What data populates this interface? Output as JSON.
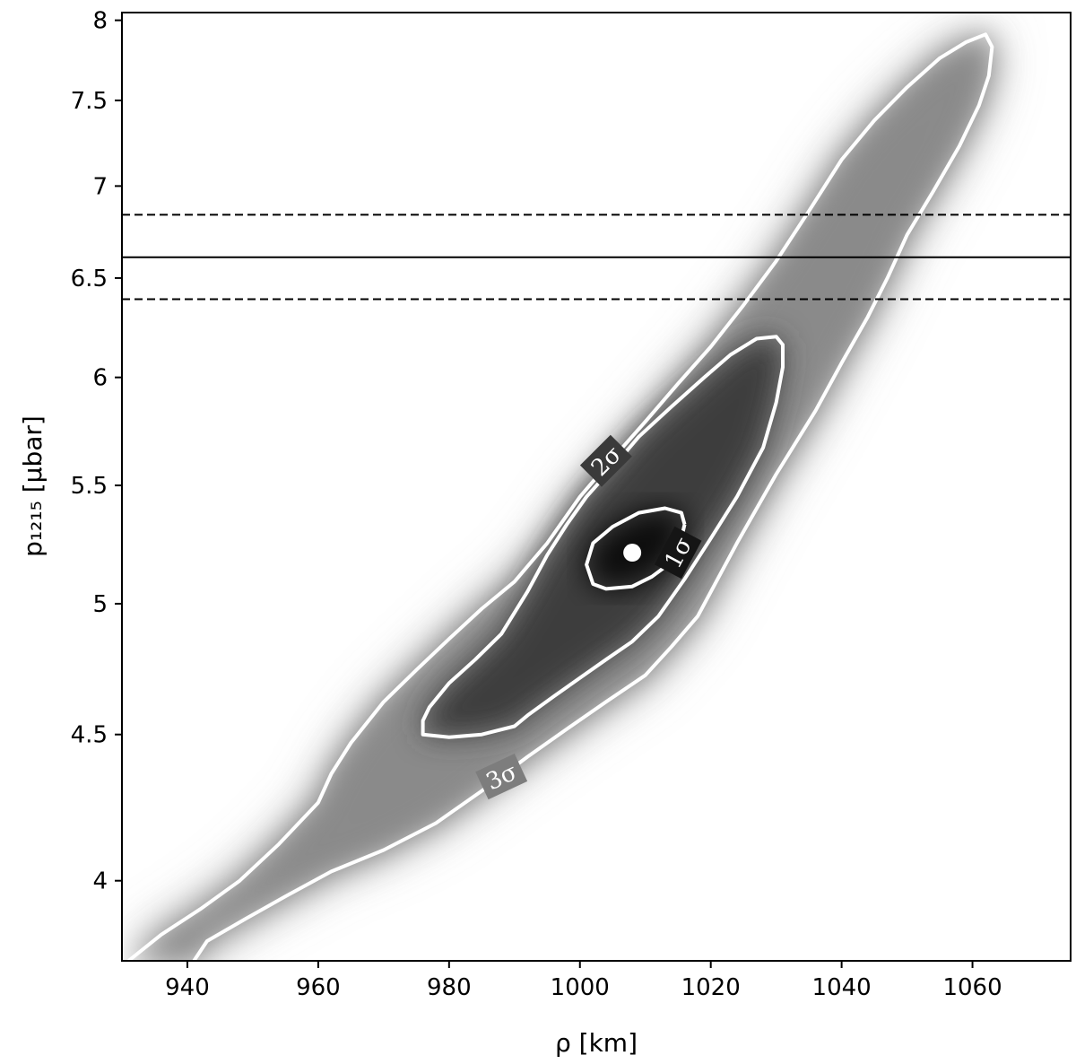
{
  "chart_data": {
    "type": "heatmap",
    "title": "",
    "xlabel": "ρ [km]",
    "ylabel": "p₁₂₁₅ [μbar]",
    "xlim": [
      930,
      1075
    ],
    "ylim": [
      3.75,
      8.05
    ],
    "y_scale": "log",
    "x_ticks": [
      940,
      960,
      980,
      1000,
      1020,
      1040,
      1060
    ],
    "y_ticks": [
      4,
      4.5,
      5,
      5.5,
      6,
      6.5,
      7,
      7.5,
      8
    ],
    "x_tick_labels": [
      "940",
      "960",
      "980",
      "1000",
      "1020",
      "1040",
      "1060"
    ],
    "y_tick_labels": [
      "4",
      "4.5",
      "5",
      "5.5",
      "6",
      "6.5",
      "7",
      "7.5",
      "8"
    ],
    "grid": false,
    "colormap": "grayscale",
    "best_fit": {
      "x": 1008,
      "y": 5.21
    },
    "reference_line": {
      "value": 6.61,
      "lower": 6.39,
      "upper": 6.84
    },
    "contours": [
      {
        "label": "1σ",
        "points": [
          [
            1016,
            5.33
          ],
          [
            1015.5,
            5.38
          ],
          [
            1013,
            5.4
          ],
          [
            1009,
            5.38
          ],
          [
            1005,
            5.32
          ],
          [
            1002,
            5.25
          ],
          [
            1001,
            5.16
          ],
          [
            1002,
            5.08
          ],
          [
            1004,
            5.06
          ],
          [
            1008,
            5.07
          ],
          [
            1011,
            5.11
          ],
          [
            1013,
            5.15
          ],
          [
            1014.5,
            5.2
          ],
          [
            1015.5,
            5.27
          ],
          [
            1016,
            5.33
          ]
        ]
      },
      {
        "label": "2σ",
        "points": [
          [
            1031,
            6.16
          ],
          [
            1030,
            6.2
          ],
          [
            1027,
            6.19
          ],
          [
            1023,
            6.11
          ],
          [
            1019,
            6.0
          ],
          [
            1014,
            5.86
          ],
          [
            1009,
            5.72
          ],
          [
            1005,
            5.58
          ],
          [
            1001,
            5.45
          ],
          [
            998,
            5.33
          ],
          [
            995,
            5.2
          ],
          [
            992,
            5.05
          ],
          [
            988,
            4.88
          ],
          [
            984,
            4.78
          ],
          [
            980,
            4.69
          ],
          [
            977,
            4.6
          ],
          [
            976,
            4.55
          ],
          [
            976,
            4.5
          ],
          [
            980,
            4.49
          ],
          [
            985,
            4.5
          ],
          [
            990,
            4.53
          ],
          [
            992,
            4.57
          ],
          [
            996,
            4.64
          ],
          [
            1000,
            4.71
          ],
          [
            1004,
            4.78
          ],
          [
            1008,
            4.85
          ],
          [
            1012,
            4.95
          ],
          [
            1016,
            5.1
          ],
          [
            1020,
            5.27
          ],
          [
            1024,
            5.45
          ],
          [
            1028,
            5.67
          ],
          [
            1030,
            5.88
          ],
          [
            1031,
            6.05
          ],
          [
            1031,
            6.16
          ]
        ]
      },
      {
        "label": "3σ",
        "points": [
          [
            931,
            3.75
          ],
          [
            936,
            3.83
          ],
          [
            942,
            3.91
          ],
          [
            948,
            4.0
          ],
          [
            954,
            4.12
          ],
          [
            960,
            4.26
          ],
          [
            962,
            4.36
          ],
          [
            965,
            4.47
          ],
          [
            970,
            4.62
          ],
          [
            975,
            4.74
          ],
          [
            980,
            4.86
          ],
          [
            985,
            4.98
          ],
          [
            990,
            5.09
          ],
          [
            995,
            5.25
          ],
          [
            1000,
            5.45
          ],
          [
            1005,
            5.62
          ],
          [
            1010,
            5.79
          ],
          [
            1015,
            5.97
          ],
          [
            1020,
            6.15
          ],
          [
            1025,
            6.36
          ],
          [
            1030,
            6.59
          ],
          [
            1035,
            6.86
          ],
          [
            1040,
            7.15
          ],
          [
            1045,
            7.38
          ],
          [
            1050,
            7.58
          ],
          [
            1055,
            7.76
          ],
          [
            1059,
            7.86
          ],
          [
            1062,
            7.91
          ],
          [
            1063,
            7.83
          ],
          [
            1062.5,
            7.65
          ],
          [
            1061,
            7.47
          ],
          [
            1058,
            7.23
          ],
          [
            1054,
            6.97
          ],
          [
            1050,
            6.73
          ],
          [
            1047,
            6.5
          ],
          [
            1044,
            6.3
          ],
          [
            1040,
            6.07
          ],
          [
            1036,
            5.84
          ],
          [
            1030,
            5.55
          ],
          [
            1024,
            5.25
          ],
          [
            1018,
            4.95
          ],
          [
            1014,
            4.83
          ],
          [
            1010,
            4.72
          ],
          [
            1004,
            4.62
          ],
          [
            998,
            4.52
          ],
          [
            992,
            4.42
          ],
          [
            985,
            4.3
          ],
          [
            978,
            4.19
          ],
          [
            970,
            4.1
          ],
          [
            962,
            4.03
          ],
          [
            955,
            3.95
          ],
          [
            949,
            3.88
          ],
          [
            943,
            3.81
          ],
          [
            941,
            3.75
          ]
        ]
      }
    ]
  }
}
